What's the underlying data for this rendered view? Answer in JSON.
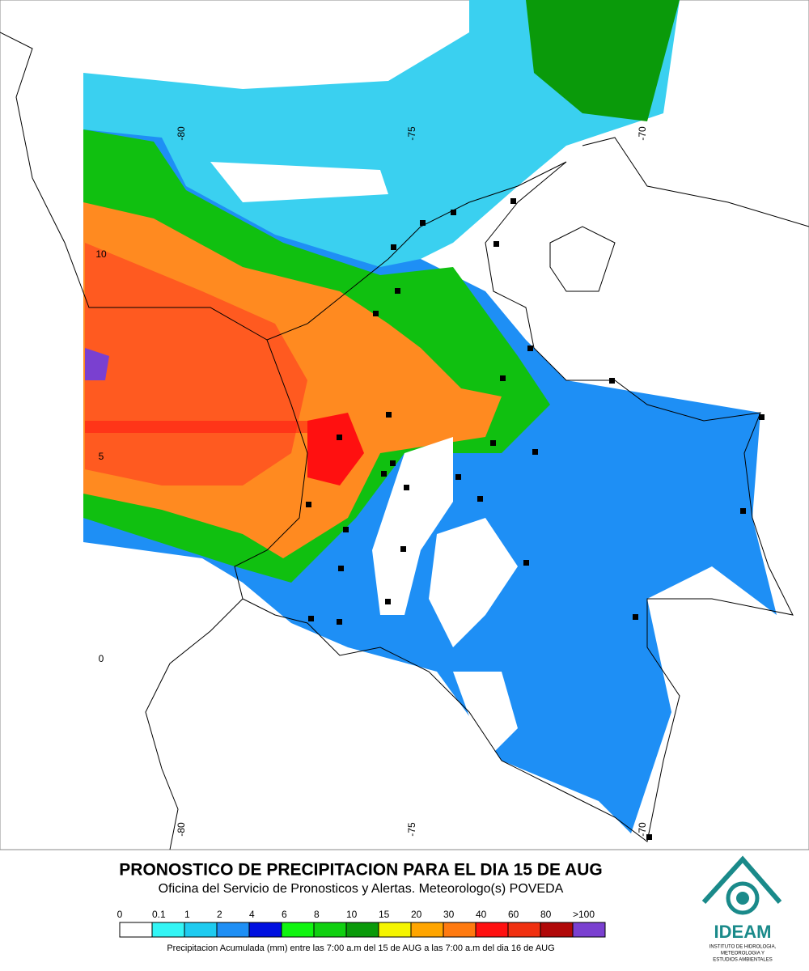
{
  "map": {
    "lon_labels_top": [
      "-80",
      "-75",
      "-70"
    ],
    "lon_labels_bottom": [
      "-80",
      "-75",
      "-70"
    ],
    "lat_labels": [
      "10",
      "5",
      "0"
    ]
  },
  "header": {
    "title": "PRONOSTICO DE PRECIPITACION PARA EL DIA 15 DE AUG",
    "subtitle": "Oficina del Servicio de Pronosticos y Alertas. Meteorologo(s) POVEDA"
  },
  "legend": {
    "labels": [
      "0",
      "0.1",
      "1",
      "2",
      "4",
      "6",
      "8",
      "10",
      "15",
      "20",
      "30",
      "40",
      "60",
      "80",
      ">100"
    ],
    "colors": [
      "#ffffff",
      "#33f5f5",
      "#1ecbf0",
      "#1e8ff5",
      "#0010e0",
      "#10f510",
      "#10d010",
      "#0a9a0a",
      "#f5f500",
      "#ffa500",
      "#ff7a10",
      "#ff1010",
      "#f03010",
      "#b00808",
      "#7a40d0"
    ],
    "caption": "Precipitacion Acumulada (mm) entre las 7:00 a.m del 15 de AUG a las 7:00 a.m del dia 16 de AUG"
  },
  "logo": {
    "name": "IDEAM",
    "subtitle": [
      "INSTITUTO DE HIDROLOGIA,",
      "METEOROLOGIA Y",
      "ESTUDIOS AMBIENTALES"
    ]
  }
}
